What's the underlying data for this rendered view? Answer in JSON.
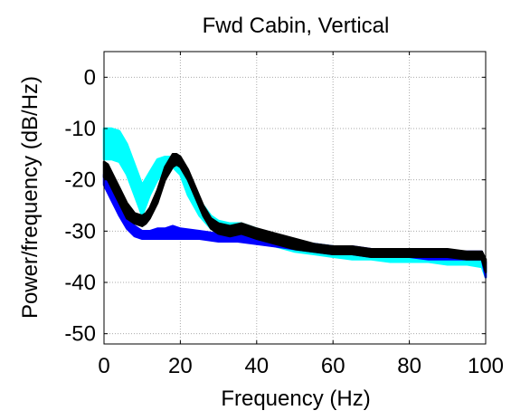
{
  "chart_data": {
    "type": "line",
    "title": "Fwd Cabin, Vertical",
    "xlabel": "Frequency (Hz)",
    "ylabel": "Power/frequency (dB/Hz)",
    "xlim": [
      0,
      100
    ],
    "ylim": [
      -52,
      5
    ],
    "xticks": [
      0,
      20,
      40,
      60,
      80,
      100
    ],
    "yticks": [
      0,
      -10,
      -20,
      -30,
      -40,
      -50
    ],
    "grid": true,
    "series": [
      {
        "color": "#00ffff",
        "x": [
          0,
          2,
          4,
          6,
          8,
          10,
          12,
          14,
          16,
          18,
          20,
          22,
          25,
          28,
          30,
          33,
          36,
          40,
          45,
          50,
          55,
          60,
          65,
          70,
          75,
          80,
          85,
          90,
          95,
          99,
          100
        ],
        "upper": [
          -10,
          -10,
          -10.5,
          -13,
          -17,
          -21,
          -18.5,
          -16,
          -15.5,
          -15.5,
          -17,
          -20,
          -24,
          -27,
          -28,
          -28.5,
          -28.5,
          -29.5,
          -31,
          -32,
          -32.5,
          -33,
          -33.5,
          -33.5,
          -34,
          -34,
          -34,
          -34.5,
          -34.5,
          -35,
          -37
        ],
        "lower": [
          -16,
          -16,
          -16.5,
          -19,
          -23,
          -27,
          -23,
          -20,
          -18,
          -17.5,
          -19,
          -23,
          -27,
          -29.5,
          -30.5,
          -30.5,
          -30.5,
          -31.5,
          -33,
          -34,
          -34.5,
          -35,
          -35.5,
          -35.5,
          -36,
          -36,
          -36,
          -36.5,
          -36.5,
          -37,
          -39
        ]
      },
      {
        "color": "#0000ff",
        "x": [
          0,
          2,
          4,
          6,
          8,
          10,
          12,
          14,
          16,
          18,
          20,
          25,
          30,
          35,
          40,
          45,
          50,
          55,
          60,
          65,
          70,
          75,
          80,
          85,
          90,
          95,
          99,
          100
        ],
        "upper": [
          -19,
          -22,
          -25,
          -27.5,
          -29,
          -30,
          -30,
          -29.5,
          -29.5,
          -29,
          -29.5,
          -30,
          -30.5,
          -30.5,
          -31,
          -31.5,
          -32,
          -32.5,
          -33,
          -33,
          -33.5,
          -33.5,
          -33.5,
          -34,
          -34,
          -34,
          -34,
          -36
        ],
        "lower": [
          -21,
          -24,
          -27,
          -29.5,
          -31,
          -31.5,
          -31.5,
          -31.5,
          -31.5,
          -31.5,
          -31.5,
          -31.5,
          -32,
          -32,
          -32.5,
          -33,
          -33.5,
          -34,
          -34.5,
          -34.5,
          -35,
          -35,
          -35,
          -35.5,
          -35.5,
          -35.5,
          -35.5,
          -39
        ]
      },
      {
        "color": "#000000",
        "x": [
          0,
          1,
          2,
          4,
          6,
          8,
          10,
          11,
          12,
          14,
          16,
          18,
          19,
          20,
          22,
          24,
          26,
          28,
          30,
          33,
          36,
          38,
          40,
          45,
          50,
          55,
          60,
          65,
          70,
          75,
          80,
          85,
          90,
          95,
          99,
          100
        ],
        "upper": [
          -16.5,
          -17,
          -18.5,
          -21.5,
          -24.5,
          -26.5,
          -27,
          -26.5,
          -25.5,
          -22,
          -17.5,
          -15,
          -15,
          -15.5,
          -18,
          -21.5,
          -25,
          -27.5,
          -28.5,
          -29,
          -28.5,
          -29,
          -29.5,
          -30.5,
          -31.5,
          -32.5,
          -33,
          -33,
          -33.5,
          -33.5,
          -33.5,
          -33.5,
          -33.5,
          -34,
          -34,
          -35.5
        ],
        "lower": [
          -19.5,
          -20,
          -21.5,
          -24.5,
          -27.5,
          -28.5,
          -29,
          -28.5,
          -27.5,
          -24.5,
          -20,
          -17.5,
          -17,
          -17.5,
          -20,
          -23.5,
          -27,
          -29.5,
          -30.5,
          -31,
          -30.5,
          -31,
          -31.5,
          -32.5,
          -33.5,
          -34,
          -34.5,
          -34.5,
          -35,
          -35,
          -35,
          -35,
          -35,
          -35.5,
          -35.5,
          -38
        ]
      }
    ]
  }
}
